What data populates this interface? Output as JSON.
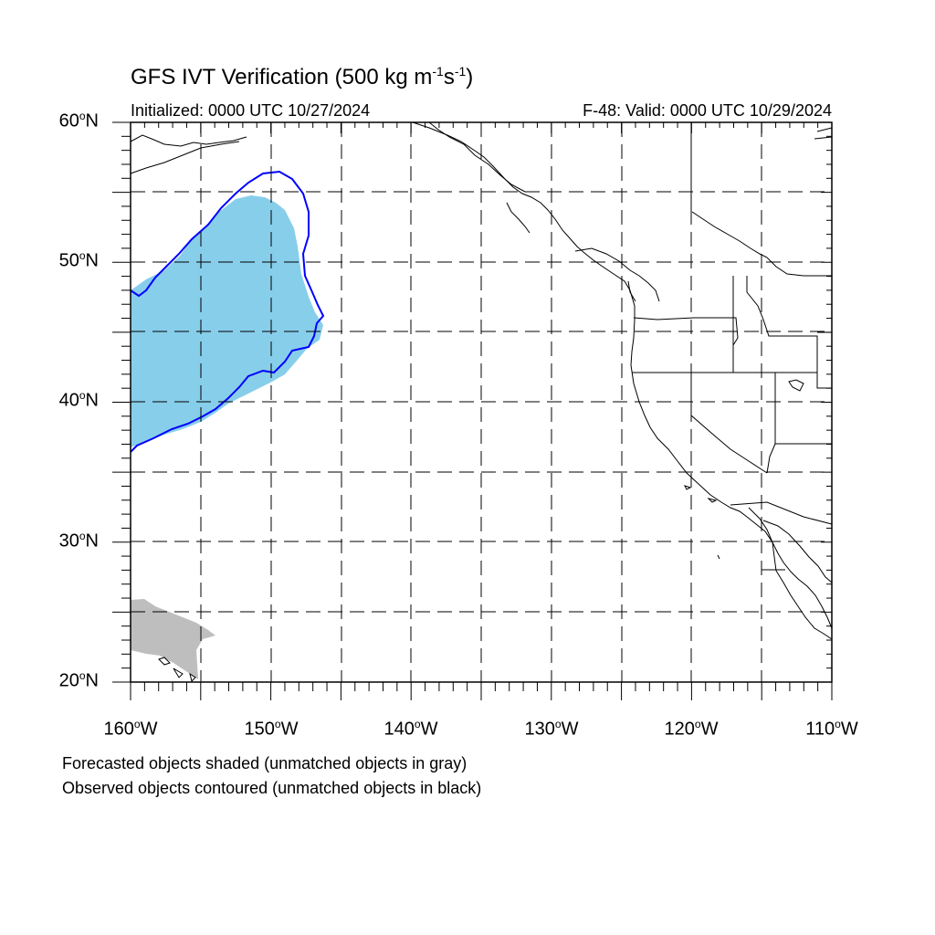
{
  "title": {
    "prefix": "GFS IVT Verification (500 kg m",
    "exp1": "-1",
    "middle": "s",
    "exp2": "-1",
    "suffix": ")"
  },
  "initialized": "Initialized: 0000 UTC 10/27/2024",
  "valid": "F-48: Valid: 0000 UTC 10/29/2024",
  "axes": {
    "lat_labels": [
      {
        "num": "60",
        "deg": "o",
        "hem": "N"
      },
      {
        "num": "50",
        "deg": "o",
        "hem": "N"
      },
      {
        "num": "40",
        "deg": "o",
        "hem": "N"
      },
      {
        "num": "30",
        "deg": "o",
        "hem": "N"
      },
      {
        "num": "20",
        "deg": "o",
        "hem": "N"
      }
    ],
    "lon_labels": [
      {
        "num": "160",
        "deg": "o",
        "hem": "W"
      },
      {
        "num": "150",
        "deg": "o",
        "hem": "W"
      },
      {
        "num": "140",
        "deg": "o",
        "hem": "W"
      },
      {
        "num": "130",
        "deg": "o",
        "hem": "W"
      },
      {
        "num": "120",
        "deg": "o",
        "hem": "W"
      },
      {
        "num": "110",
        "deg": "o",
        "hem": "W"
      }
    ],
    "lon_range": [
      -160,
      -110
    ],
    "lat_range": [
      20,
      60
    ],
    "gridlines": "dashed every 5 degrees"
  },
  "colors": {
    "forecast_matched": "#87ceeb",
    "forecast_unmatched": "#bebebe",
    "observed_matched": "#0000ff",
    "observed_unmatched": "#000000"
  },
  "legend": {
    "line1": "Forecasted objects shaded (unmatched objects in gray)",
    "line2": "Observed objects contoured (unmatched objects in black)"
  }
}
